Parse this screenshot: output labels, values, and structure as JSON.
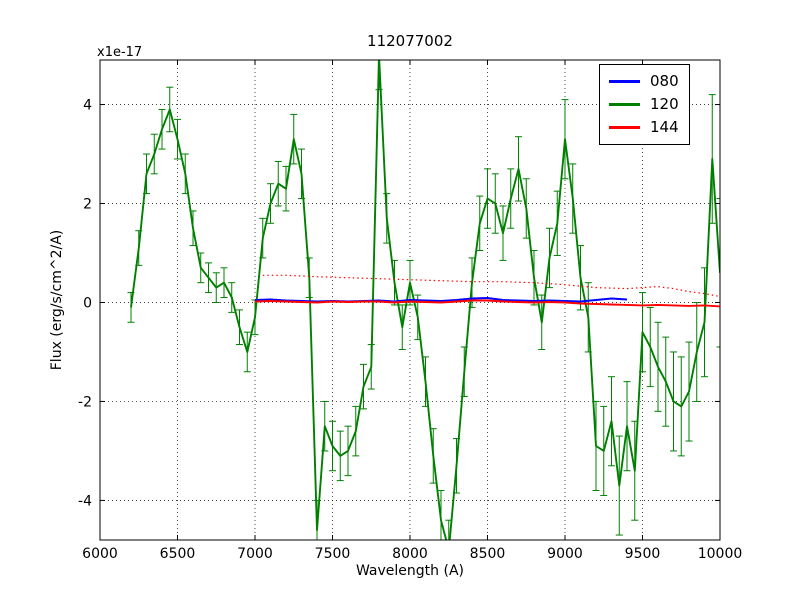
{
  "figure": {
    "title": "112077002",
    "offset_label": "x1e-17",
    "xlabel": "Wavelength (A)",
    "ylabel": "Flux (erg/s/cm^2/A)"
  },
  "legend": {
    "items": [
      {
        "label": "080",
        "color": "#0000ff"
      },
      {
        "label": "120",
        "color": "#008000"
      },
      {
        "label": "144",
        "color": "#ff0000"
      }
    ]
  },
  "chart_data": {
    "type": "line",
    "title": "112077002",
    "xlabel": "Wavelength (A)",
    "ylabel": "Flux (erg/s/cm^2/A)",
    "y_scale_note": "x1e-17",
    "xlim": [
      6000,
      10000
    ],
    "ylim": [
      -4.8,
      4.9
    ],
    "xticks": [
      6000,
      6500,
      7000,
      7500,
      8000,
      8500,
      9000,
      9500,
      10000
    ],
    "yticks": [
      -4,
      -2,
      0,
      2,
      4
    ],
    "grid": true,
    "grid_style": "dotted",
    "legend_position": "upper right",
    "series": [
      {
        "name": "120",
        "color": "#008000",
        "style": "solid",
        "has_error_bars": true,
        "x": [
          6200,
          6250,
          6300,
          6350,
          6400,
          6450,
          6500,
          6550,
          6600,
          6650,
          6700,
          6750,
          6800,
          6850,
          6900,
          6950,
          7000,
          7050,
          7100,
          7150,
          7200,
          7250,
          7300,
          7350,
          7400,
          7450,
          7500,
          7550,
          7600,
          7650,
          7700,
          7750,
          7800,
          7850,
          7900,
          7950,
          8000,
          8050,
          8100,
          8150,
          8200,
          8250,
          8300,
          8350,
          8400,
          8450,
          8500,
          8550,
          8600,
          8650,
          8700,
          8750,
          8800,
          8850,
          8900,
          8950,
          9000,
          9050,
          9100,
          9150,
          9200,
          9250,
          9300,
          9350,
          9400,
          9450,
          9500,
          9550,
          9600,
          9650,
          9700,
          9750,
          9800,
          9850,
          9900,
          9950,
          10000
        ],
        "y": [
          -0.1,
          1.1,
          2.6,
          3.0,
          3.5,
          3.9,
          3.3,
          2.6,
          1.5,
          0.7,
          0.5,
          0.3,
          0.4,
          0.1,
          -0.5,
          -1.0,
          -0.3,
          1.3,
          2.0,
          2.4,
          2.3,
          3.3,
          2.6,
          0.5,
          -4.6,
          -2.5,
          -2.9,
          -3.1,
          -3.0,
          -2.6,
          -1.7,
          -1.3,
          5.0,
          1.7,
          0.4,
          -0.5,
          0.4,
          -0.3,
          -1.6,
          -3.1,
          -4.4,
          -5.0,
          -3.3,
          -1.4,
          0.4,
          1.6,
          2.1,
          2.0,
          1.4,
          2.1,
          2.7,
          1.9,
          0.5,
          -0.4,
          0.9,
          1.6,
          3.3,
          2.1,
          0.5,
          -0.3,
          -2.9,
          -3.0,
          -2.4,
          -3.7,
          -2.5,
          -3.4,
          -0.6,
          -0.9,
          -1.3,
          -1.6,
          -2.0,
          -2.1,
          -1.8,
          -1.0,
          -0.4,
          2.9,
          0.6
        ],
        "yerr": [
          0.3,
          0.35,
          0.4,
          0.4,
          0.4,
          0.45,
          0.4,
          0.4,
          0.35,
          0.3,
          0.3,
          0.3,
          0.3,
          0.3,
          0.35,
          0.4,
          0.35,
          0.4,
          0.4,
          0.45,
          0.45,
          0.5,
          0.5,
          0.4,
          0.6,
          0.5,
          0.5,
          0.5,
          0.5,
          0.5,
          0.45,
          0.45,
          0.7,
          0.5,
          0.45,
          0.45,
          0.45,
          0.45,
          0.5,
          0.55,
          0.6,
          0.6,
          0.55,
          0.5,
          0.5,
          0.55,
          0.6,
          0.6,
          0.55,
          0.6,
          0.65,
          0.6,
          0.55,
          0.55,
          0.6,
          0.65,
          0.8,
          0.7,
          0.65,
          0.7,
          0.9,
          0.9,
          0.9,
          1.0,
          0.9,
          1.0,
          0.8,
          0.8,
          0.9,
          0.9,
          1.0,
          1.0,
          1.0,
          1.0,
          1.1,
          1.3,
          1.5
        ]
      },
      {
        "name": "080",
        "color": "#0000ff",
        "style": "solid",
        "has_error_bars": false,
        "x": [
          7000,
          7100,
          7200,
          7300,
          7400,
          7500,
          7600,
          7700,
          7800,
          7900,
          8000,
          8100,
          8200,
          8300,
          8400,
          8500,
          8600,
          8700,
          8800,
          8900,
          9000,
          9100,
          9200,
          9300,
          9400
        ],
        "y": [
          0.05,
          0.06,
          0.04,
          0.03,
          0.02,
          0.03,
          0.02,
          0.03,
          0.04,
          0.02,
          0.05,
          0.04,
          0.03,
          0.05,
          0.08,
          0.09,
          0.05,
          0.04,
          0.03,
          0.04,
          0.03,
          0.02,
          0.05,
          0.08,
          0.06
        ]
      },
      {
        "name": "144-upper-envelope",
        "color": "#ff0000",
        "style": "dotted",
        "has_error_bars": false,
        "x": [
          7050,
          7200,
          7400,
          7600,
          7800,
          8000,
          8200,
          8400,
          8600,
          8800,
          9000,
          9200,
          9400,
          9500,
          9600,
          9700,
          9800,
          9900,
          10000
        ],
        "y": [
          0.55,
          0.55,
          0.52,
          0.5,
          0.48,
          0.46,
          0.44,
          0.42,
          0.42,
          0.4,
          0.36,
          0.3,
          0.28,
          0.3,
          0.32,
          0.28,
          0.22,
          0.18,
          0.12
        ]
      },
      {
        "name": "144",
        "color": "#ff0000",
        "style": "solid",
        "has_error_bars": false,
        "x": [
          7000,
          7100,
          7200,
          7300,
          7400,
          7500,
          7600,
          7700,
          7800,
          7900,
          8000,
          8100,
          8200,
          8300,
          8400,
          8500,
          8600,
          8700,
          8800,
          8900,
          9000,
          9100,
          9200,
          9300,
          9400,
          9500,
          9600,
          9700,
          9800,
          9900,
          10000
        ],
        "y": [
          0.02,
          0.03,
          0.02,
          0.01,
          0.0,
          0.02,
          0.01,
          0.02,
          0.02,
          0.0,
          0.02,
          0.01,
          0.0,
          0.02,
          0.04,
          0.04,
          0.02,
          0.01,
          0.0,
          0.01,
          0.0,
          -0.02,
          -0.03,
          -0.04,
          -0.05,
          -0.06,
          -0.05,
          -0.06,
          -0.07,
          -0.06,
          -0.08
        ]
      }
    ]
  }
}
